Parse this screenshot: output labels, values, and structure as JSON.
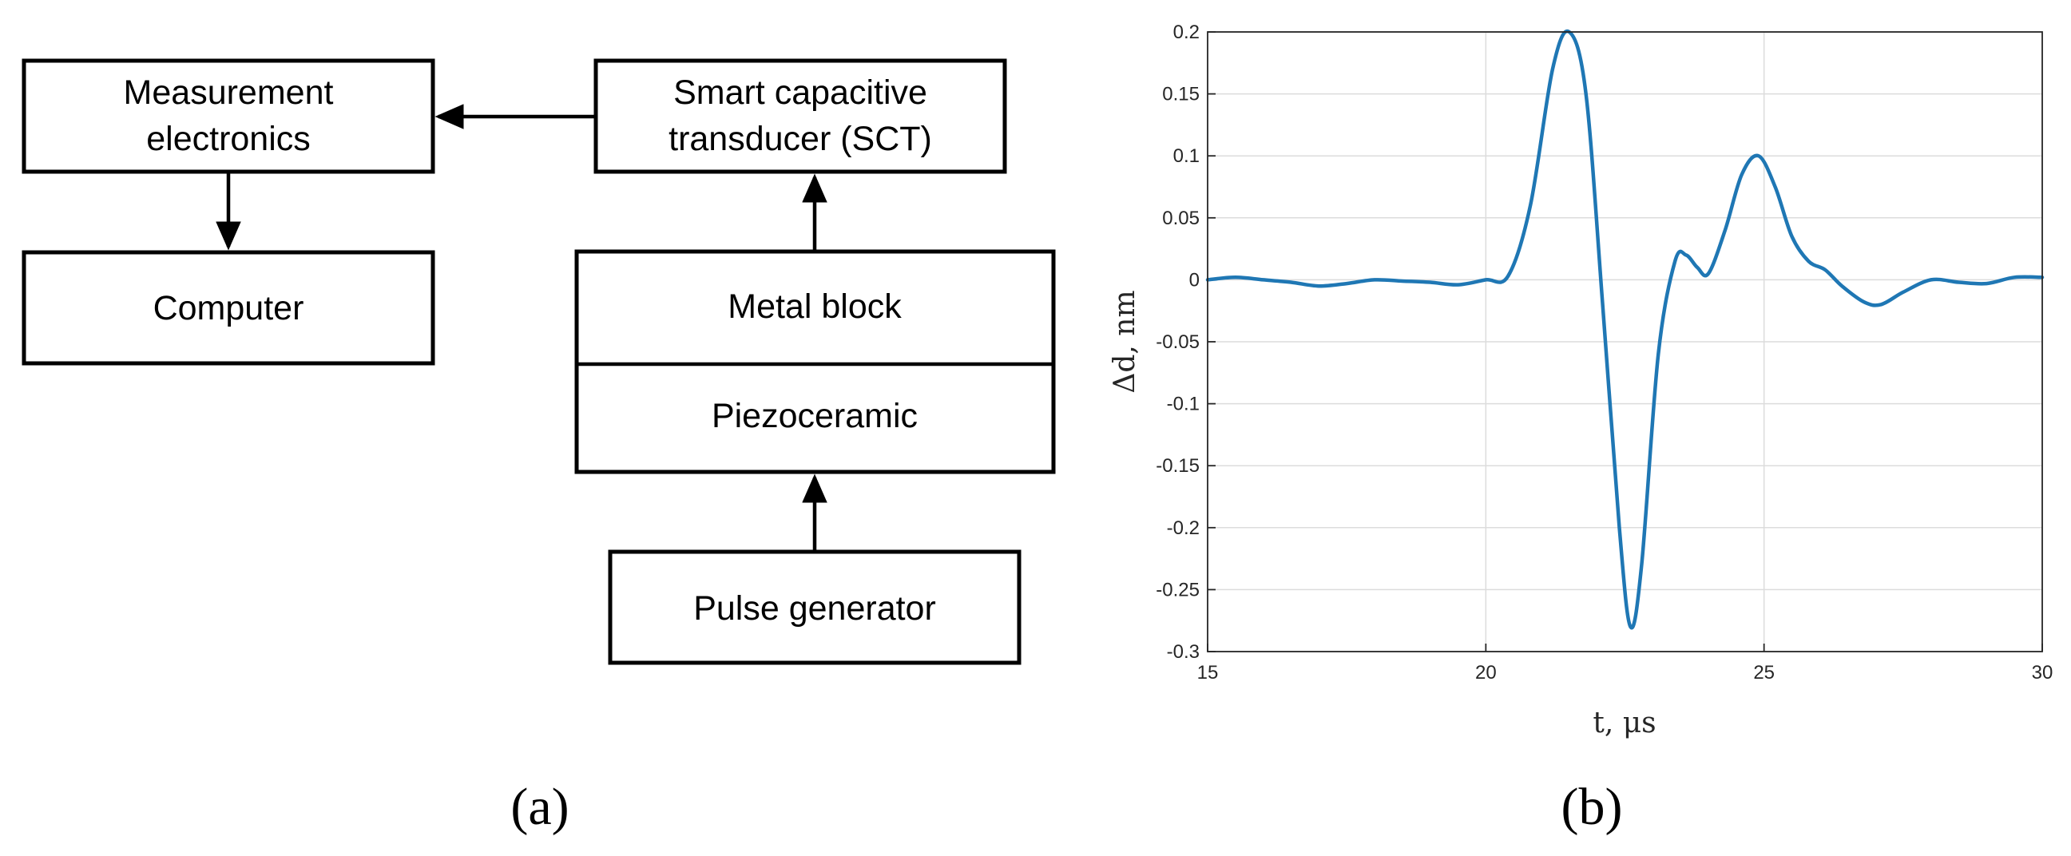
{
  "diagram": {
    "panel_label": "(a)",
    "blocks": {
      "measurement": {
        "line1": "Measurement",
        "line2": "electronics"
      },
      "sct": {
        "line1": "Smart capacitive",
        "line2": "transducer (SCT)"
      },
      "computer": "Computer",
      "metal_block": "Metal block",
      "piezoceramic": "Piezoceramic",
      "pulse_generator": "Pulse generator"
    },
    "connections": [
      {
        "from": "pulse_generator",
        "to": "piezoceramic"
      },
      {
        "from": "metal_block",
        "to": "sct"
      },
      {
        "from": "sct",
        "to": "measurement"
      },
      {
        "from": "measurement",
        "to": "computer"
      }
    ]
  },
  "chart_panel_label": "(b)",
  "chart_data": {
    "type": "line",
    "title": "",
    "xlabel": "t, μs",
    "ylabel": "Δd, nm",
    "xlim": [
      15,
      30
    ],
    "ylim": [
      -0.3,
      0.2
    ],
    "xticks": [
      15,
      20,
      25,
      30
    ],
    "yticks": [
      0.2,
      0.15,
      0.1,
      0.05,
      0,
      -0.05,
      -0.1,
      -0.15,
      -0.2,
      -0.25,
      -0.3
    ],
    "grid": true,
    "line_color": "#1f77b4",
    "series": [
      {
        "x": [
          15,
          15.5,
          16,
          16.5,
          17,
          17.5,
          18,
          18.5,
          19,
          19.5,
          20,
          20.4,
          20.8,
          21.2,
          21.5,
          21.8,
          22.1,
          22.4,
          22.6,
          22.8,
          23.1,
          23.4,
          23.6,
          23.8,
          24,
          24.3,
          24.6,
          24.9,
          25.2,
          25.5,
          25.8,
          26.1,
          26.4,
          26.8,
          27.1,
          27.5,
          28,
          28.5,
          29,
          29.5,
          30
        ],
        "y": [
          0,
          0.002,
          0,
          -0.002,
          -0.005,
          -0.003,
          0,
          -0.001,
          -0.002,
          -0.004,
          0,
          0.003,
          0.06,
          0.17,
          0.2,
          0.15,
          -0.02,
          -0.2,
          -0.28,
          -0.23,
          -0.06,
          0.015,
          0.02,
          0.01,
          0.005,
          0.04,
          0.085,
          0.1,
          0.075,
          0.035,
          0.015,
          0.008,
          -0.005,
          -0.018,
          -0.02,
          -0.01,
          0,
          -0.002,
          -0.003,
          0.002,
          0.002
        ]
      }
    ]
  }
}
